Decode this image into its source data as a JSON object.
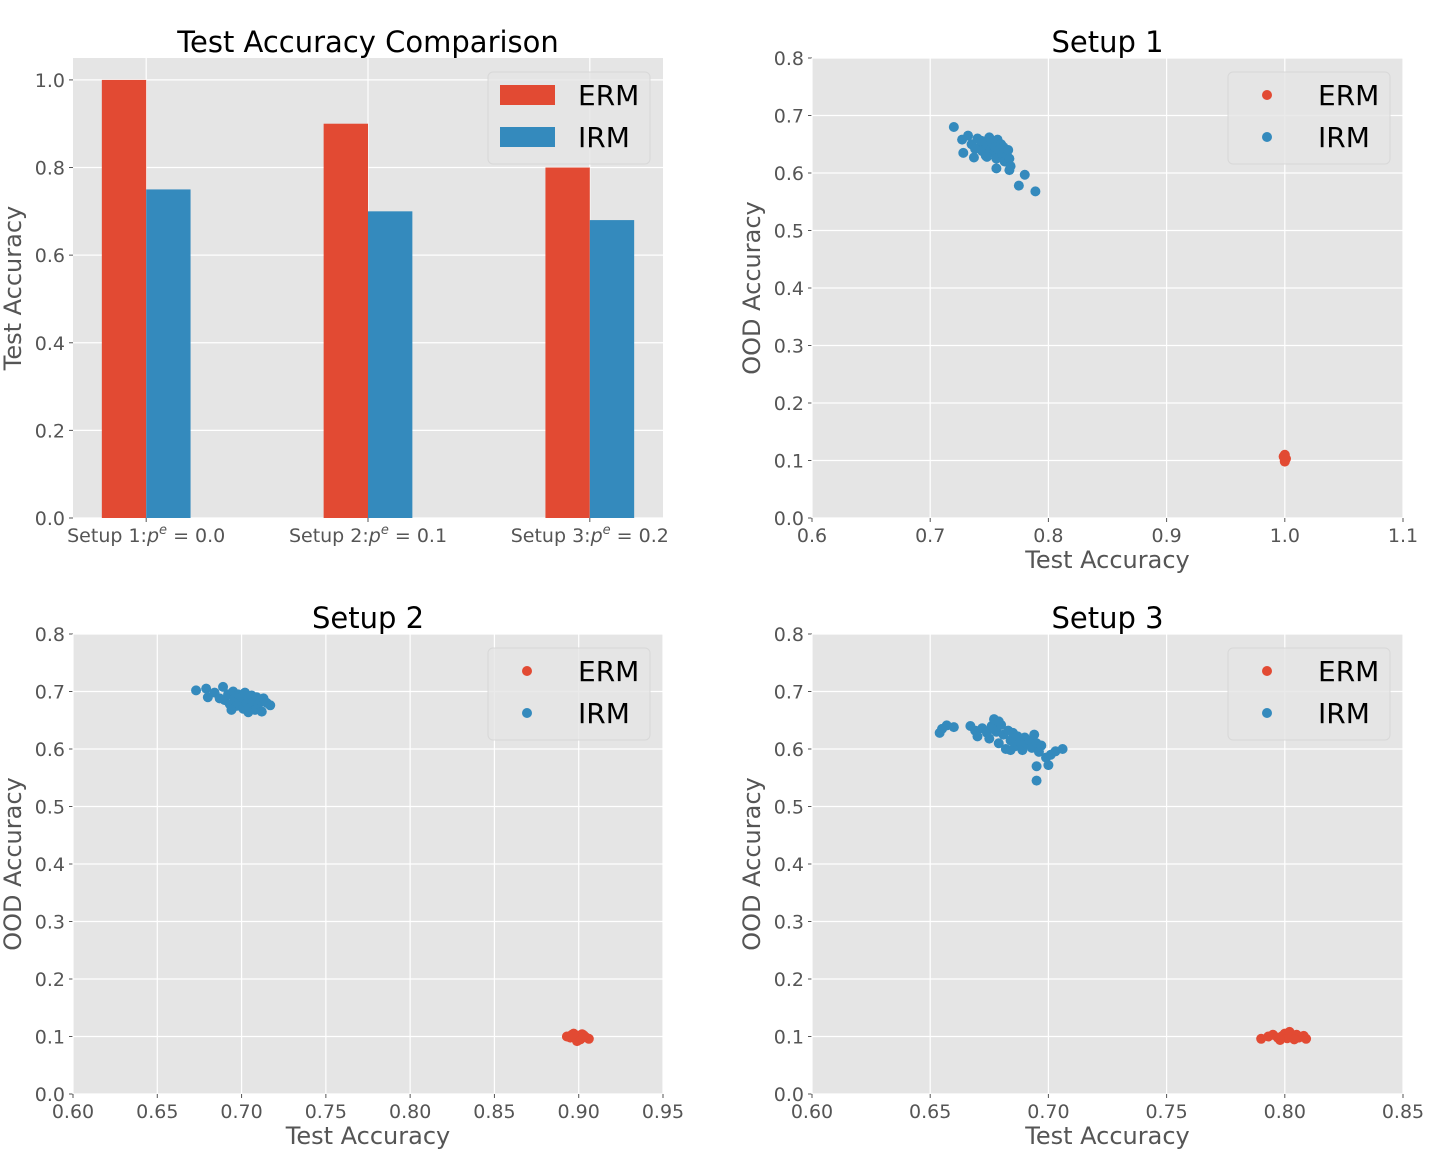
{
  "colors": {
    "erm": "#E24A33",
    "irm": "#348ABD",
    "panel_bg": "#E5E5E5",
    "grid": "#FFFFFF"
  },
  "chart_data": [
    {
      "type": "bar",
      "title": "Test Accuracy Comparison",
      "xlabel": "",
      "ylabel": "Test Accuracy",
      "categories": [
        "Setup 1:",
        "Setup 2:",
        "Setup 3:"
      ],
      "category_suffix": [
        "= 0.0",
        "= 0.1",
        "= 0.2"
      ],
      "category_math": "p",
      "category_sup": "e",
      "ylim": [
        0,
        1.05
      ],
      "yticks": [
        "0.0",
        "0.2",
        "0.4",
        "0.6",
        "0.8",
        "1.0"
      ],
      "series": [
        {
          "name": "ERM",
          "values": [
            1.0,
            0.9,
            0.8
          ]
        },
        {
          "name": "IRM",
          "values": [
            0.75,
            0.7,
            0.68
          ]
        }
      ],
      "legend": "top-right",
      "grid": true
    },
    {
      "type": "scatter",
      "title": "Setup 1",
      "xlabel": "Test Accuracy",
      "ylabel": "OOD Accuracy",
      "xlim": [
        0.6,
        1.1
      ],
      "ylim": [
        0,
        0.8
      ],
      "xticks": [
        "0.6",
        "0.7",
        "0.8",
        "0.9",
        "1.0",
        "1.1"
      ],
      "yticks": [
        "0.0",
        "0.1",
        "0.2",
        "0.3",
        "0.4",
        "0.5",
        "0.6",
        "0.7",
        "0.8"
      ],
      "legend": "top-right",
      "grid": true,
      "series": [
        {
          "name": "ERM",
          "points": [
            [
              1.0,
              0.1
            ],
            [
              1.0,
              0.105
            ],
            [
              1.0,
              0.11
            ],
            [
              1.0,
              0.098
            ],
            [
              1.0,
              0.102
            ],
            [
              0.999,
              0.107
            ],
            [
              1.001,
              0.103
            ]
          ]
        },
        {
          "name": "IRM",
          "points": [
            [
              0.72,
              0.68
            ],
            [
              0.727,
              0.658
            ],
            [
              0.728,
              0.635
            ],
            [
              0.732,
              0.665
            ],
            [
              0.735,
              0.65
            ],
            [
              0.737,
              0.627
            ],
            [
              0.74,
              0.66
            ],
            [
              0.742,
              0.645
            ],
            [
              0.744,
              0.638
            ],
            [
              0.745,
              0.655
            ],
            [
              0.747,
              0.63
            ],
            [
              0.748,
              0.648
            ],
            [
              0.75,
              0.662
            ],
            [
              0.751,
              0.64
            ],
            [
              0.752,
              0.652
            ],
            [
              0.754,
              0.635
            ],
            [
              0.755,
              0.645
            ],
            [
              0.756,
              0.625
            ],
            [
              0.757,
              0.658
            ],
            [
              0.758,
              0.64
            ],
            [
              0.76,
              0.65
            ],
            [
              0.761,
              0.632
            ],
            [
              0.762,
              0.645
            ],
            [
              0.763,
              0.62
            ],
            [
              0.764,
              0.638
            ],
            [
              0.765,
              0.63
            ],
            [
              0.766,
              0.64
            ],
            [
              0.767,
              0.625
            ],
            [
              0.768,
              0.612
            ],
            [
              0.756,
              0.608
            ],
            [
              0.767,
              0.605
            ],
            [
              0.775,
              0.578
            ],
            [
              0.78,
              0.597
            ],
            [
              0.789,
              0.568
            ],
            [
              0.748,
              0.628
            ],
            [
              0.743,
              0.656
            ],
            [
              0.738,
              0.642
            ]
          ]
        }
      ]
    },
    {
      "type": "scatter",
      "title": "Setup 2",
      "xlabel": "Test Accuracy",
      "ylabel": "OOD Accuracy",
      "xlim": [
        0.6,
        0.95
      ],
      "ylim": [
        0,
        0.8
      ],
      "xticks": [
        "0.60",
        "0.65",
        "0.70",
        "0.75",
        "0.80",
        "0.85",
        "0.90",
        "0.95"
      ],
      "yticks": [
        "0.0",
        "0.1",
        "0.2",
        "0.3",
        "0.4",
        "0.5",
        "0.6",
        "0.7",
        "0.8"
      ],
      "legend": "top-right",
      "grid": true,
      "series": [
        {
          "name": "ERM",
          "points": [
            [
              0.893,
              0.1
            ],
            [
              0.896,
              0.103
            ],
            [
              0.898,
              0.097
            ],
            [
              0.9,
              0.101
            ],
            [
              0.901,
              0.095
            ],
            [
              0.902,
              0.104
            ],
            [
              0.904,
              0.099
            ],
            [
              0.906,
              0.096
            ],
            [
              0.899,
              0.092
            ],
            [
              0.895,
              0.098
            ],
            [
              0.903,
              0.102
            ],
            [
              0.897,
              0.105
            ]
          ]
        },
        {
          "name": "IRM",
          "points": [
            [
              0.673,
              0.702
            ],
            [
              0.679,
              0.705
            ],
            [
              0.68,
              0.69
            ],
            [
              0.684,
              0.698
            ],
            [
              0.687,
              0.688
            ],
            [
              0.689,
              0.708
            ],
            [
              0.69,
              0.685
            ],
            [
              0.692,
              0.695
            ],
            [
              0.693,
              0.678
            ],
            [
              0.695,
              0.7
            ],
            [
              0.696,
              0.688
            ],
            [
              0.697,
              0.675
            ],
            [
              0.698,
              0.695
            ],
            [
              0.699,
              0.682
            ],
            [
              0.7,
              0.69
            ],
            [
              0.701,
              0.67
            ],
            [
              0.702,
              0.698
            ],
            [
              0.703,
              0.68
            ],
            [
              0.704,
              0.688
            ],
            [
              0.705,
              0.672
            ],
            [
              0.706,
              0.693
            ],
            [
              0.707,
              0.682
            ],
            [
              0.708,
              0.668
            ],
            [
              0.709,
              0.69
            ],
            [
              0.71,
              0.678
            ],
            [
              0.711,
              0.685
            ],
            [
              0.712,
              0.665
            ],
            [
              0.713,
              0.688
            ],
            [
              0.715,
              0.68
            ],
            [
              0.717,
              0.676
            ],
            [
              0.694,
              0.668
            ],
            [
              0.704,
              0.664
            ]
          ]
        }
      ]
    },
    {
      "type": "scatter",
      "title": "Setup 3",
      "xlabel": "Test Accuracy",
      "ylabel": "OOD Accuracy",
      "xlim": [
        0.6,
        0.85
      ],
      "ylim": [
        0,
        0.8
      ],
      "xticks": [
        "0.60",
        "0.65",
        "0.70",
        "0.75",
        "0.80",
        "0.85"
      ],
      "yticks": [
        "0.0",
        "0.1",
        "0.2",
        "0.3",
        "0.4",
        "0.5",
        "0.6",
        "0.7",
        "0.8"
      ],
      "legend": "top-right",
      "grid": true,
      "series": [
        {
          "name": "ERM",
          "points": [
            [
              0.79,
              0.096
            ],
            [
              0.793,
              0.1
            ],
            [
              0.795,
              0.103
            ],
            [
              0.797,
              0.098
            ],
            [
              0.799,
              0.101
            ],
            [
              0.8,
              0.105
            ],
            [
              0.801,
              0.097
            ],
            [
              0.802,
              0.108
            ],
            [
              0.803,
              0.1
            ],
            [
              0.805,
              0.103
            ],
            [
              0.806,
              0.098
            ],
            [
              0.808,
              0.101
            ],
            [
              0.809,
              0.096
            ],
            [
              0.798,
              0.094
            ],
            [
              0.804,
              0.095
            ]
          ]
        },
        {
          "name": "IRM",
          "points": [
            [
              0.654,
              0.628
            ],
            [
              0.655,
              0.635
            ],
            [
              0.657,
              0.641
            ],
            [
              0.66,
              0.638
            ],
            [
              0.667,
              0.64
            ],
            [
              0.669,
              0.632
            ],
            [
              0.67,
              0.622
            ],
            [
              0.672,
              0.636
            ],
            [
              0.674,
              0.628
            ],
            [
              0.675,
              0.618
            ],
            [
              0.676,
              0.64
            ],
            [
              0.677,
              0.652
            ],
            [
              0.678,
              0.63
            ],
            [
              0.679,
              0.61
            ],
            [
              0.68,
              0.642
            ],
            [
              0.681,
              0.625
            ],
            [
              0.682,
              0.6
            ],
            [
              0.683,
              0.632
            ],
            [
              0.684,
              0.615
            ],
            [
              0.685,
              0.628
            ],
            [
              0.686,
              0.605
            ],
            [
              0.687,
              0.622
            ],
            [
              0.688,
              0.612
            ],
            [
              0.689,
              0.598
            ],
            [
              0.69,
              0.62
            ],
            [
              0.691,
              0.608
            ],
            [
              0.692,
              0.615
            ],
            [
              0.693,
              0.602
            ],
            [
              0.694,
              0.625
            ],
            [
              0.695,
              0.61
            ],
            [
              0.696,
              0.595
            ],
            [
              0.697,
              0.606
            ],
            [
              0.699,
              0.585
            ],
            [
              0.7,
              0.572
            ],
            [
              0.701,
              0.59
            ],
            [
              0.703,
              0.596
            ],
            [
              0.706,
              0.6
            ],
            [
              0.695,
              0.57
            ],
            [
              0.695,
              0.545
            ],
            [
              0.679,
              0.648
            ],
            [
              0.684,
              0.598
            ]
          ]
        }
      ]
    }
  ]
}
